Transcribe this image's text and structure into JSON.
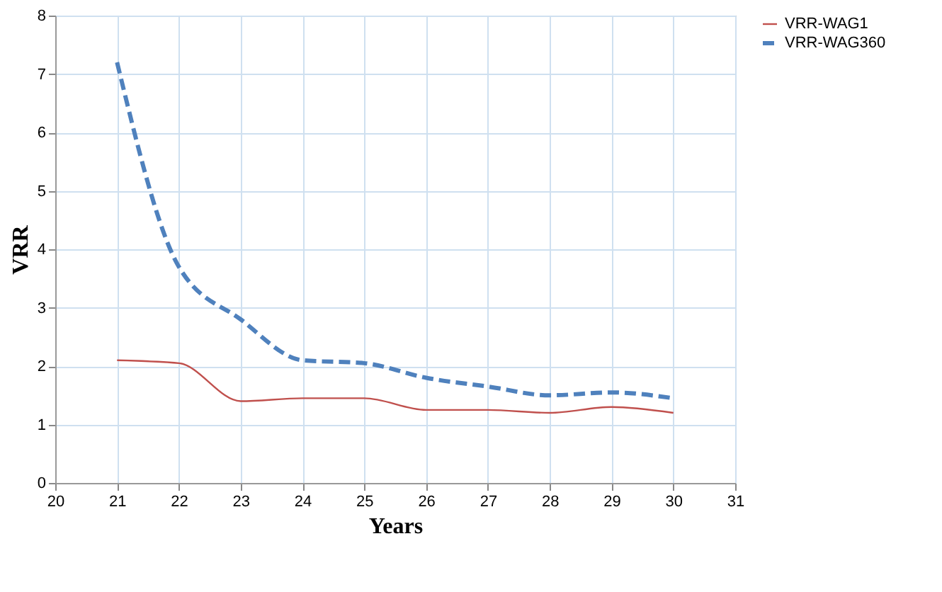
{
  "chart_data": {
    "type": "line",
    "xlabel": "Years",
    "ylabel": "VRR",
    "x": [
      21,
      22,
      23,
      24,
      25,
      26,
      27,
      28,
      29,
      30
    ],
    "series": [
      {
        "name": "VRR-WAG1",
        "color": "#c0504d",
        "line_style": "solid",
        "values": [
          2.1,
          2.05,
          1.4,
          1.45,
          1.45,
          1.25,
          1.25,
          1.2,
          1.3,
          1.2
        ]
      },
      {
        "name": "VRR-WAG360",
        "color": "#4f81bd",
        "line_style": "dashed",
        "values": [
          7.2,
          3.7,
          2.8,
          2.1,
          2.05,
          1.8,
          1.65,
          1.5,
          1.55,
          1.45
        ]
      }
    ],
    "xlim": [
      20,
      31
    ],
    "xticks": [
      20,
      21,
      22,
      23,
      24,
      25,
      26,
      27,
      28,
      29,
      30,
      31
    ],
    "ylim": [
      0,
      8
    ],
    "yticks": [
      0,
      1,
      2,
      3,
      4,
      5,
      6,
      7,
      8
    ],
    "grid": true,
    "legend": "right",
    "marker": "none"
  }
}
